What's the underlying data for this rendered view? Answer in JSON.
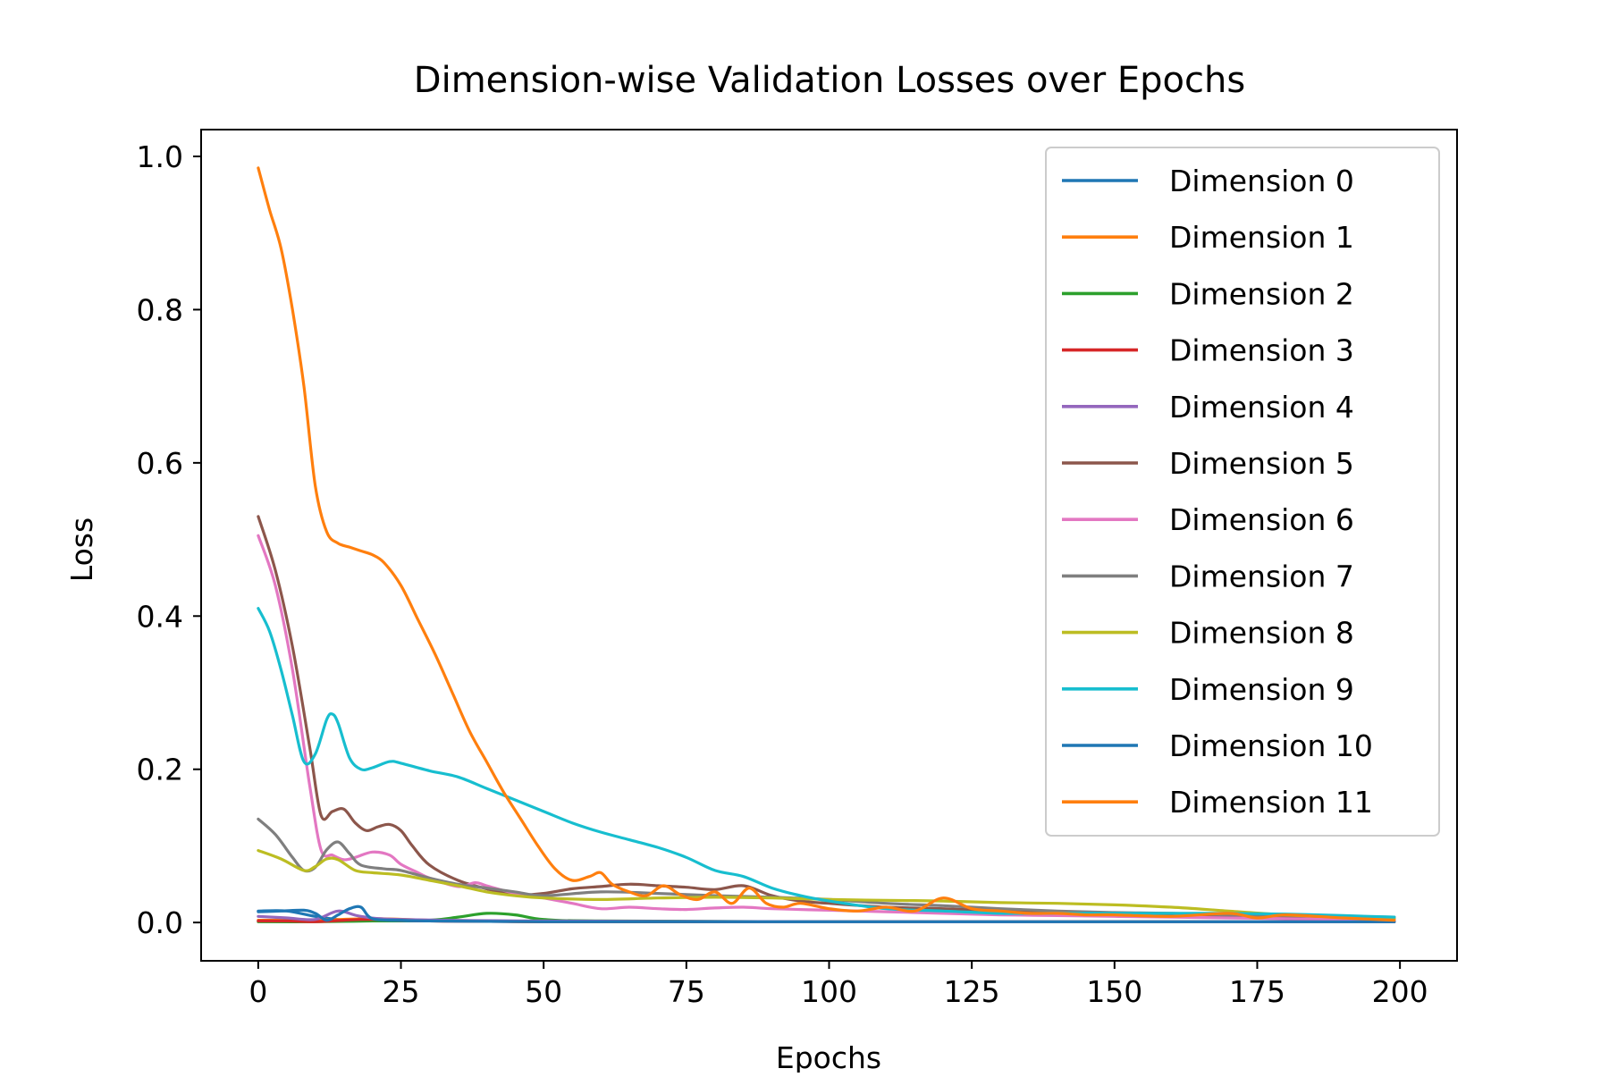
{
  "chart_data": {
    "type": "line",
    "title": "Dimension-wise Validation Losses over Epochs",
    "xlabel": "Epochs",
    "ylabel": "Loss",
    "xlim": [
      -10,
      210
    ],
    "ylim": [
      -0.05,
      1.035
    ],
    "xticks": [
      0,
      25,
      50,
      75,
      100,
      125,
      150,
      175,
      200
    ],
    "xtick_labels": [
      "0",
      "25",
      "50",
      "75",
      "100",
      "125",
      "150",
      "175",
      "200"
    ],
    "yticks": [
      0.0,
      0.2,
      0.4,
      0.6,
      0.8,
      1.0
    ],
    "ytick_labels": [
      "0.0",
      "0.2",
      "0.4",
      "0.6",
      "0.8",
      "1.0"
    ],
    "grid": false,
    "legend_position": "upper right",
    "series": [
      {
        "name": "Dimension 0",
        "color": "#1f77b4",
        "x": [
          0,
          5,
          10,
          15,
          20,
          30,
          50,
          100,
          150,
          199
        ],
        "y": [
          0.015,
          0.015,
          0.008,
          0.003,
          0.002,
          0.002,
          0.001,
          0.001,
          0.001,
          0.001
        ]
      },
      {
        "name": "Dimension 1",
        "color": "#ff7f0e",
        "x": [
          0,
          10,
          20,
          30,
          40,
          50,
          75,
          100,
          150,
          199
        ],
        "y": [
          0.003,
          0.003,
          0.005,
          0.003,
          0.002,
          0.001,
          0.001,
          0.001,
          0.001,
          0.001
        ]
      },
      {
        "name": "Dimension 2",
        "color": "#2ca02c",
        "x": [
          0,
          10,
          20,
          30,
          35,
          40,
          45,
          50,
          60,
          100,
          150,
          199
        ],
        "y": [
          0.001,
          0.001,
          0.002,
          0.003,
          0.007,
          0.012,
          0.01,
          0.004,
          0.002,
          0.001,
          0.001,
          0.001
        ]
      },
      {
        "name": "Dimension 3",
        "color": "#d62728",
        "x": [
          0,
          5,
          10,
          15,
          20,
          30,
          50,
          100,
          150,
          199
        ],
        "y": [
          0.002,
          0.002,
          0.001,
          0.003,
          0.004,
          0.002,
          0.001,
          0.001,
          0.001,
          0.001
        ]
      },
      {
        "name": "Dimension 4",
        "color": "#9467bd",
        "x": [
          0,
          5,
          10,
          14,
          18,
          25,
          50,
          100,
          150,
          199
        ],
        "y": [
          0.008,
          0.006,
          0.004,
          0.015,
          0.008,
          0.004,
          0.002,
          0.001,
          0.001,
          0.001
        ]
      },
      {
        "name": "Dimension 5",
        "color": "#8c564b",
        "x": [
          0,
          3,
          6,
          9,
          11,
          13,
          15,
          17,
          19,
          21,
          23,
          25,
          27,
          30,
          35,
          40,
          45,
          50,
          55,
          60,
          65,
          70,
          75,
          80,
          85,
          90,
          95,
          100,
          110,
          120,
          130,
          140,
          150,
          160,
          170,
          180,
          190,
          199
        ],
        "y": [
          0.53,
          0.46,
          0.36,
          0.23,
          0.14,
          0.145,
          0.148,
          0.13,
          0.12,
          0.125,
          0.128,
          0.12,
          0.1,
          0.075,
          0.055,
          0.044,
          0.036,
          0.038,
          0.044,
          0.047,
          0.05,
          0.048,
          0.046,
          0.043,
          0.048,
          0.035,
          0.028,
          0.025,
          0.02,
          0.018,
          0.015,
          0.013,
          0.012,
          0.01,
          0.009,
          0.008,
          0.007,
          0.005
        ]
      },
      {
        "name": "Dimension 6",
        "color": "#e377c2",
        "x": [
          0,
          3,
          6,
          9,
          11,
          13,
          15,
          17,
          20,
          23,
          25,
          28,
          30,
          35,
          38,
          40,
          45,
          50,
          55,
          60,
          65,
          70,
          75,
          80,
          85,
          90,
          100,
          110,
          120,
          130,
          140,
          150,
          160,
          170,
          180,
          190,
          199
        ],
        "y": [
          0.505,
          0.44,
          0.33,
          0.18,
          0.095,
          0.088,
          0.082,
          0.085,
          0.092,
          0.088,
          0.076,
          0.065,
          0.058,
          0.047,
          0.052,
          0.048,
          0.038,
          0.032,
          0.025,
          0.018,
          0.02,
          0.018,
          0.017,
          0.019,
          0.02,
          0.018,
          0.016,
          0.014,
          0.012,
          0.01,
          0.009,
          0.008,
          0.007,
          0.006,
          0.005,
          0.004,
          0.003
        ]
      },
      {
        "name": "Dimension 7",
        "color": "#7f7f7f",
        "x": [
          0,
          3,
          6,
          8,
          10,
          12,
          14,
          16,
          18,
          22,
          25,
          30,
          35,
          40,
          45,
          50,
          60,
          70,
          80,
          90,
          100,
          110,
          120,
          130,
          140,
          150,
          160,
          170,
          180,
          190,
          199
        ],
        "y": [
          0.135,
          0.115,
          0.085,
          0.068,
          0.072,
          0.095,
          0.105,
          0.09,
          0.075,
          0.07,
          0.068,
          0.058,
          0.05,
          0.045,
          0.04,
          0.035,
          0.04,
          0.038,
          0.035,
          0.033,
          0.03,
          0.025,
          0.022,
          0.018,
          0.015,
          0.013,
          0.012,
          0.01,
          0.009,
          0.008,
          0.007
        ]
      },
      {
        "name": "Dimension 8",
        "color": "#bcbd22",
        "x": [
          0,
          4,
          8,
          10,
          12,
          14,
          17,
          20,
          25,
          30,
          35,
          40,
          45,
          50,
          60,
          70,
          80,
          90,
          100,
          110,
          120,
          130,
          140,
          150,
          160,
          170,
          180,
          190,
          199
        ],
        "y": [
          0.094,
          0.083,
          0.068,
          0.073,
          0.083,
          0.082,
          0.068,
          0.065,
          0.062,
          0.055,
          0.048,
          0.04,
          0.035,
          0.032,
          0.03,
          0.032,
          0.033,
          0.032,
          0.03,
          0.029,
          0.028,
          0.026,
          0.025,
          0.023,
          0.02,
          0.015,
          0.01,
          0.007,
          0.005
        ]
      },
      {
        "name": "Dimension 9",
        "color": "#17becf",
        "x": [
          0,
          2,
          4,
          6,
          8,
          10,
          12,
          13,
          14,
          16,
          18,
          20,
          23,
          25,
          30,
          35,
          40,
          45,
          50,
          55,
          60,
          65,
          70,
          75,
          80,
          85,
          90,
          95,
          100,
          110,
          120,
          130,
          140,
          150,
          160,
          170,
          180,
          190,
          199
        ],
        "y": [
          0.41,
          0.38,
          0.33,
          0.27,
          0.21,
          0.22,
          0.265,
          0.272,
          0.26,
          0.215,
          0.2,
          0.202,
          0.21,
          0.208,
          0.198,
          0.19,
          0.175,
          0.16,
          0.145,
          0.13,
          0.118,
          0.108,
          0.098,
          0.085,
          0.068,
          0.06,
          0.045,
          0.035,
          0.028,
          0.018,
          0.015,
          0.012,
          0.012,
          0.012,
          0.012,
          0.012,
          0.011,
          0.009,
          0.007
        ]
      },
      {
        "name": "Dimension 10",
        "color": "#1f77b4",
        "x": [
          0,
          4,
          8,
          10,
          12,
          14,
          16,
          18,
          20,
          25,
          30,
          50,
          100,
          150,
          199
        ],
        "y": [
          0.014,
          0.015,
          0.016,
          0.012,
          0.003,
          0.01,
          0.018,
          0.02,
          0.005,
          0.003,
          0.002,
          0.001,
          0.001,
          0.001,
          0.001
        ]
      },
      {
        "name": "Dimension 11",
        "color": "#ff7f0e",
        "x": [
          0,
          2,
          4,
          6,
          8,
          10,
          12,
          14,
          16,
          18,
          20,
          22,
          25,
          28,
          31,
          34,
          37,
          40,
          43,
          46,
          49,
          52,
          55,
          58,
          60,
          62,
          65,
          68,
          71,
          74,
          77,
          80,
          83,
          86,
          89,
          92,
          95,
          100,
          105,
          110,
          115,
          120,
          125,
          130,
          135,
          140,
          145,
          150,
          160,
          170,
          175,
          180,
          190,
          199
        ],
        "y": [
          0.985,
          0.93,
          0.88,
          0.8,
          0.7,
          0.57,
          0.51,
          0.495,
          0.49,
          0.485,
          0.48,
          0.47,
          0.44,
          0.395,
          0.35,
          0.3,
          0.25,
          0.21,
          0.17,
          0.135,
          0.1,
          0.07,
          0.055,
          0.06,
          0.065,
          0.05,
          0.04,
          0.035,
          0.048,
          0.036,
          0.03,
          0.04,
          0.025,
          0.045,
          0.025,
          0.02,
          0.025,
          0.018,
          0.015,
          0.02,
          0.015,
          0.032,
          0.018,
          0.015,
          0.012,
          0.012,
          0.01,
          0.01,
          0.008,
          0.012,
          0.006,
          0.01,
          0.006,
          0.003
        ]
      }
    ]
  }
}
